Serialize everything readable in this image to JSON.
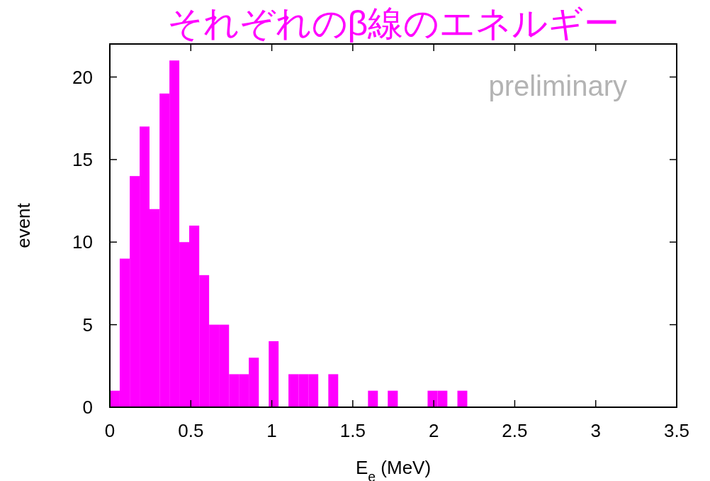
{
  "chart_data": {
    "type": "histogram",
    "title": "それぞれのβ線のエネルギー",
    "xlabel": "E$_{e}$ (MeV)",
    "ylabel": "event",
    "annotations": [
      "preliminary"
    ],
    "color": "#ff00ff",
    "bins": [
      0,
      0.061,
      0.123,
      0.184,
      0.245,
      0.307,
      0.368,
      0.429,
      0.49,
      0.552,
      0.613,
      0.674,
      0.736,
      0.797,
      0.858,
      0.92,
      0.981,
      1.042,
      1.103,
      1.165,
      1.226,
      1.287,
      1.349,
      1.41,
      1.471,
      1.533,
      1.594,
      1.655,
      1.716,
      1.778,
      1.839,
      1.9,
      1.962,
      2.023,
      2.084,
      2.146,
      2.207
    ],
    "values": [
      1,
      9,
      14,
      17,
      12,
      19,
      21,
      10,
      11,
      8,
      5,
      5,
      2,
      2,
      3,
      0,
      4,
      0,
      2,
      2,
      2,
      0,
      2,
      0,
      0,
      0,
      1,
      0,
      1,
      0,
      0,
      0,
      1,
      1,
      0,
      1
    ],
    "xlim": [
      0,
      3.5
    ],
    "xticks": [
      0,
      0.5,
      1,
      1.5,
      2,
      2.5,
      3,
      3.5
    ],
    "ylim": [
      0,
      22
    ],
    "yticks": [
      0,
      5,
      10,
      15,
      20
    ],
    "grid": false
  }
}
